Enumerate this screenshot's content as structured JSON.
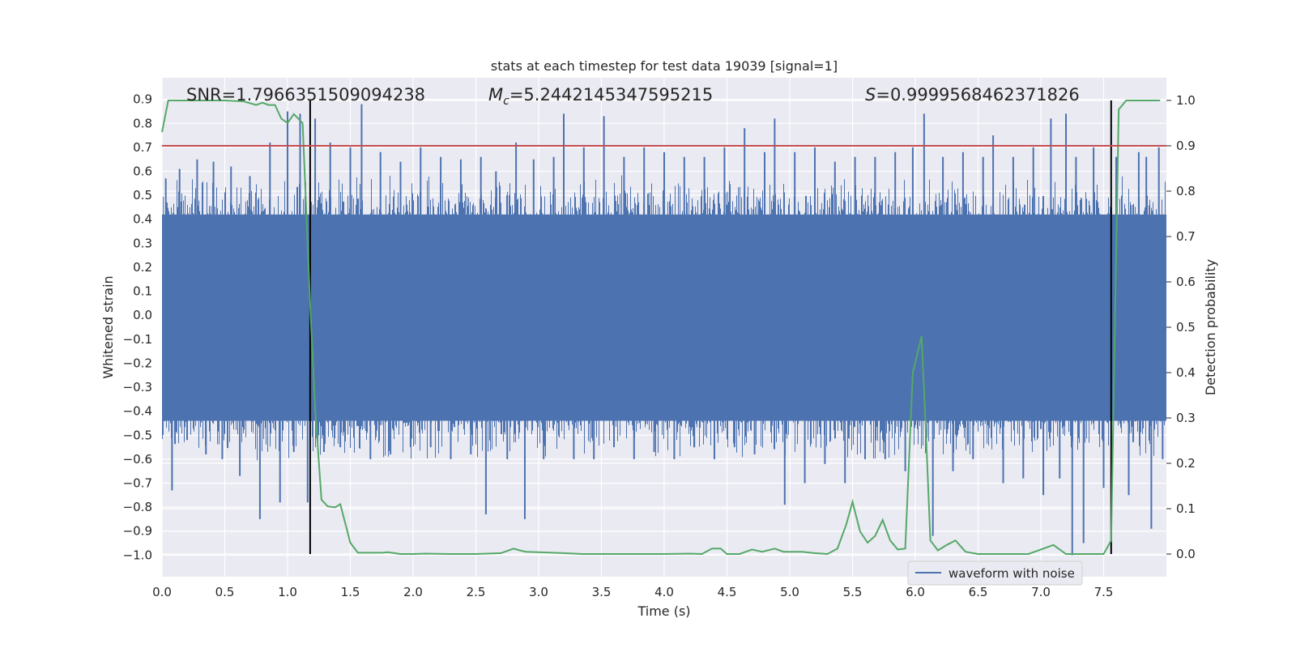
{
  "chart_data": {
    "type": "line",
    "title": "stats at each timestep for test data 19039 [signal=1]",
    "xlabel": "Time (s)",
    "ylabel": "Whitened strain",
    "ylabel_right": "Detection probability",
    "xlim": [
      0.0,
      8.0
    ],
    "ylim": [
      -1.09,
      0.99
    ],
    "ylim_right": [
      -0.05,
      1.05
    ],
    "x_ticks": [
      "0.0",
      "0.5",
      "1.0",
      "1.5",
      "2.0",
      "2.5",
      "3.0",
      "3.5",
      "4.0",
      "4.5",
      "5.0",
      "5.5",
      "6.0",
      "6.5",
      "7.0",
      "7.5"
    ],
    "y_ticks": [
      "0.9",
      "0.8",
      "0.7",
      "0.6",
      "0.5",
      "0.4",
      "0.3",
      "0.2",
      "0.1",
      "0.0",
      "−0.1",
      "−0.2",
      "−0.3",
      "−0.4",
      "−0.5",
      "−0.6",
      "−0.7",
      "−0.8",
      "−0.9",
      "−1.0"
    ],
    "y_ticks_right": [
      "1.0",
      "0.9",
      "0.8",
      "0.7",
      "0.6",
      "0.5",
      "0.4",
      "0.3",
      "0.2",
      "0.1",
      "0.0"
    ],
    "annotations": {
      "snr_label": "SNR=1.7966351509094238",
      "mc_label": "=5.2442145347595215",
      "s_label": "=0.9999568462371826"
    },
    "threshold_right": 0.9,
    "vlines": [
      1.18,
      7.56
    ],
    "legend": {
      "label": "waveform with noise",
      "placement": "lower-right"
    },
    "colors": {
      "waveform": "#4c72b0",
      "probability": "#55a868",
      "threshold": "#c44e52",
      "vline": "#000000",
      "axes_bg": "#eaeaf2"
    },
    "waveform": {
      "name": "waveform with noise",
      "envelope_upper": 0.42,
      "envelope_lower": -0.44,
      "spikes": [
        [
          0.03,
          0.57
        ],
        [
          0.08,
          -0.73
        ],
        [
          0.14,
          0.61
        ],
        [
          0.2,
          -0.52
        ],
        [
          0.28,
          0.65
        ],
        [
          0.35,
          -0.58
        ],
        [
          0.41,
          0.64
        ],
        [
          0.48,
          -0.6
        ],
        [
          0.55,
          0.62
        ],
        [
          0.62,
          -0.67
        ],
        [
          0.7,
          0.58
        ],
        [
          0.78,
          -0.85
        ],
        [
          0.86,
          0.72
        ],
        [
          0.94,
          -0.78
        ],
        [
          1.0,
          0.85
        ],
        [
          1.05,
          -0.57
        ],
        [
          1.1,
          0.84
        ],
        [
          1.16,
          -0.78
        ],
        [
          1.22,
          0.82
        ],
        [
          1.29,
          -0.57
        ],
        [
          1.34,
          0.72
        ],
        [
          1.42,
          -0.55
        ],
        [
          1.5,
          0.7
        ],
        [
          1.59,
          0.88
        ],
        [
          1.66,
          -0.6
        ],
        [
          1.74,
          0.68
        ],
        [
          1.82,
          -0.58
        ],
        [
          1.9,
          0.64
        ],
        [
          1.98,
          -0.55
        ],
        [
          2.06,
          0.7
        ],
        [
          2.14,
          -0.55
        ],
        [
          2.22,
          0.66
        ],
        [
          2.3,
          -0.6
        ],
        [
          2.38,
          0.65
        ],
        [
          2.46,
          -0.58
        ],
        [
          2.54,
          0.66
        ],
        [
          2.58,
          -0.83
        ],
        [
          2.66,
          0.6
        ],
        [
          2.75,
          -0.6
        ],
        [
          2.82,
          0.72
        ],
        [
          2.89,
          -0.85
        ],
        [
          2.96,
          0.65
        ],
        [
          3.04,
          -0.6
        ],
        [
          3.12,
          0.66
        ],
        [
          3.2,
          0.84
        ],
        [
          3.28,
          -0.6
        ],
        [
          3.36,
          0.7
        ],
        [
          3.44,
          -0.6
        ],
        [
          3.52,
          0.83
        ],
        [
          3.6,
          -0.55
        ],
        [
          3.68,
          0.66
        ],
        [
          3.76,
          -0.6
        ],
        [
          3.84,
          0.7
        ],
        [
          3.92,
          -0.57
        ],
        [
          4.0,
          0.68
        ],
        [
          4.08,
          -0.6
        ],
        [
          4.16,
          0.66
        ],
        [
          4.24,
          -0.55
        ],
        [
          4.32,
          0.66
        ],
        [
          4.4,
          -0.6
        ],
        [
          4.48,
          0.7
        ],
        [
          4.56,
          -0.55
        ],
        [
          4.64,
          0.78
        ],
        [
          4.72,
          -0.58
        ],
        [
          4.8,
          0.68
        ],
        [
          4.88,
          0.82
        ],
        [
          4.96,
          -0.79
        ],
        [
          5.04,
          0.68
        ],
        [
          5.12,
          -0.7
        ],
        [
          5.2,
          0.7
        ],
        [
          5.28,
          -0.62
        ],
        [
          5.36,
          0.64
        ],
        [
          5.44,
          -0.7
        ],
        [
          5.52,
          0.66
        ],
        [
          5.6,
          -0.6
        ],
        [
          5.68,
          0.66
        ],
        [
          5.76,
          -0.6
        ],
        [
          5.84,
          0.68
        ],
        [
          5.92,
          -0.65
        ],
        [
          5.98,
          0.7
        ],
        [
          6.07,
          0.84
        ],
        [
          6.14,
          -0.92
        ],
        [
          6.22,
          0.66
        ],
        [
          6.3,
          -0.65
        ],
        [
          6.38,
          0.68
        ],
        [
          6.46,
          -0.6
        ],
        [
          6.54,
          0.66
        ],
        [
          6.62,
          0.75
        ],
        [
          6.7,
          -0.7
        ],
        [
          6.78,
          0.66
        ],
        [
          6.86,
          -0.68
        ],
        [
          6.94,
          0.7
        ],
        [
          7.02,
          -0.75
        ],
        [
          7.08,
          0.82
        ],
        [
          7.15,
          -0.68
        ],
        [
          7.2,
          0.84
        ],
        [
          7.25,
          -1.0
        ],
        [
          7.28,
          0.66
        ],
        [
          7.34,
          -0.95
        ],
        [
          7.42,
          0.7
        ],
        [
          7.5,
          -0.72
        ],
        [
          7.6,
          0.66
        ],
        [
          7.7,
          -0.75
        ],
        [
          7.78,
          0.68
        ],
        [
          7.84,
          0.66
        ],
        [
          7.88,
          -0.89
        ],
        [
          7.94,
          0.7
        ],
        [
          7.97,
          -0.6
        ]
      ]
    },
    "probability": {
      "name": "Detection probability",
      "x": [
        0.0,
        0.05,
        0.15,
        0.3,
        0.5,
        0.65,
        0.75,
        0.8,
        0.85,
        0.9,
        0.95,
        1.0,
        1.05,
        1.12,
        1.18,
        1.22,
        1.27,
        1.32,
        1.38,
        1.42,
        1.5,
        1.56,
        1.65,
        1.75,
        1.8,
        1.9,
        2.0,
        2.1,
        2.3,
        2.5,
        2.7,
        2.8,
        2.85,
        2.9,
        3.0,
        3.2,
        3.35,
        3.5,
        3.7,
        3.9,
        4.0,
        4.2,
        4.3,
        4.38,
        4.45,
        4.5,
        4.6,
        4.7,
        4.78,
        4.88,
        4.95,
        5.0,
        5.1,
        5.2,
        5.3,
        5.38,
        5.45,
        5.5,
        5.56,
        5.62,
        5.68,
        5.74,
        5.8,
        5.86,
        5.92,
        5.98,
        6.05,
        6.08,
        6.12,
        6.18,
        6.25,
        6.32,
        6.4,
        6.5,
        6.7,
        6.9,
        7.0,
        7.1,
        7.2,
        7.3,
        7.4,
        7.5,
        7.56,
        7.62,
        7.68,
        7.75,
        7.85,
        7.95
      ],
      "values": [
        0.93,
        1.0,
        1.0,
        1.0,
        1.0,
        0.998,
        0.99,
        0.995,
        0.99,
        0.99,
        0.96,
        0.95,
        0.97,
        0.95,
        0.55,
        0.32,
        0.12,
        0.105,
        0.103,
        0.11,
        0.025,
        0.003,
        0.003,
        0.003,
        0.004,
        0.0,
        0.0,
        0.001,
        0.0,
        0.0,
        0.002,
        0.012,
        0.008,
        0.005,
        0.004,
        0.002,
        0.0,
        0.0,
        0.0,
        0.0,
        0.0,
        0.001,
        0.0,
        0.012,
        0.012,
        0.0,
        0.0,
        0.01,
        0.005,
        0.012,
        0.005,
        0.005,
        0.005,
        0.002,
        0.0,
        0.012,
        0.065,
        0.115,
        0.05,
        0.025,
        0.04,
        0.075,
        0.03,
        0.01,
        0.012,
        0.4,
        0.48,
        0.3,
        0.03,
        0.008,
        0.02,
        0.03,
        0.005,
        0.0,
        0.0,
        0.0,
        0.01,
        0.02,
        0.0,
        0.0,
        0.0,
        0.0,
        0.03,
        0.98,
        1.0,
        1.0,
        1.0,
        1.0
      ]
    }
  }
}
